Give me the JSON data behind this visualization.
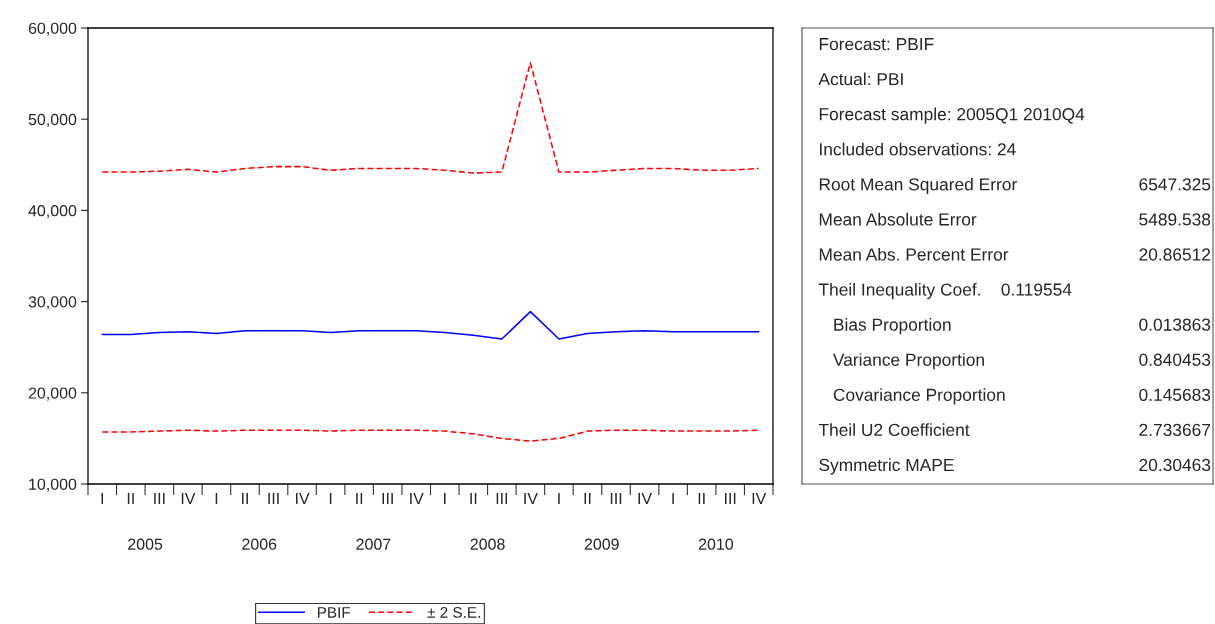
{
  "chart_data": {
    "type": "line",
    "categories": [
      "I",
      "II",
      "III",
      "IV",
      "I",
      "II",
      "III",
      "IV",
      "I",
      "II",
      "III",
      "IV",
      "I",
      "II",
      "III",
      "IV",
      "I",
      "II",
      "III",
      "IV",
      "I",
      "II",
      "III",
      "IV"
    ],
    "series": [
      {
        "name": "PBIF",
        "color": "#0000ff",
        "line_style": "solid",
        "values": [
          26400,
          26400,
          26600,
          26700,
          26500,
          26800,
          26800,
          26800,
          26600,
          26800,
          26800,
          26800,
          26600,
          26300,
          25900,
          28900,
          25900,
          26500,
          26700,
          26800,
          26700,
          26700,
          26700,
          26700
        ]
      },
      {
        "name": "± 2 S.E.",
        "color": "#ff0000",
        "line_style": "dashed",
        "values": [
          44200,
          44200,
          44300,
          44500,
          44200,
          44600,
          44800,
          44800,
          44400,
          44600,
          44600,
          44600,
          44400,
          44100,
          44200,
          56200,
          44200,
          44200,
          44400,
          44600,
          44600,
          44400,
          44400,
          44600
        ]
      },
      {
        "color": "#ff0000",
        "line_style": "dashed",
        "values": [
          15700,
          15700,
          15800,
          15900,
          15800,
          15900,
          15900,
          15900,
          15800,
          15900,
          15900,
          15900,
          15800,
          15500,
          15000,
          14700,
          15000,
          15800,
          15900,
          15900,
          15800,
          15800,
          15800,
          15900
        ]
      }
    ],
    "ylim": [
      10000,
      60000
    ],
    "yticks": [
      {
        "value": 10000,
        "label": "10,000"
      },
      {
        "value": 20000,
        "label": "20,000"
      },
      {
        "value": 30000,
        "label": "30,000"
      },
      {
        "value": 40000,
        "label": "40,000"
      },
      {
        "value": 50000,
        "label": "50,000"
      },
      {
        "value": 60000,
        "label": "60,000"
      }
    ],
    "grid": false,
    "legend": "bottom",
    "annotations": [
      "2005",
      "2006",
      "2007",
      "2008",
      "2009",
      "2010",
      "Forecast: PBIF",
      "Actual: PBI",
      "Forecast sample: 2005Q1 2010Q4",
      "Included observations: 24",
      "Root Mean Squared Error\t6547.325",
      "Mean Absolute Error\t5489.538",
      "Mean Abs. Percent Error\t20.86512",
      "Theil Inequality Coef.    0.119554",
      "   Bias Proportion\t0.013863",
      "   Variance Proportion\t0.840453",
      "   Covariance Proportion\t0.145683",
      "Theil U2 Coefficient\t2.733667",
      "Symmetric MAPE\t20.30463"
    ]
  }
}
